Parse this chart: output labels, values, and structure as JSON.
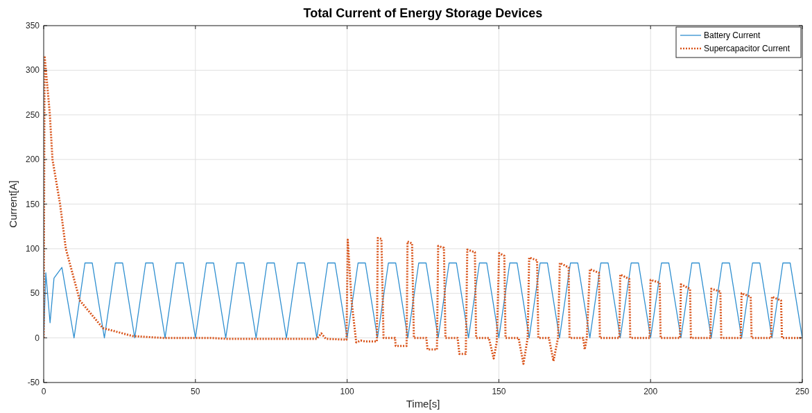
{
  "chart_data": {
    "type": "line",
    "title": "Total Current of Energy Storage Devices",
    "xlabel": "Time[s]",
    "ylabel": "Current[A]",
    "xlim": [
      0,
      250
    ],
    "ylim": [
      -50,
      350
    ],
    "xticks": [
      0,
      50,
      100,
      150,
      200,
      250
    ],
    "yticks": [
      -50,
      0,
      50,
      100,
      150,
      200,
      250,
      300,
      350
    ],
    "grid": true,
    "legend": "top right",
    "series": [
      {
        "name": "Battery Current",
        "color": "#2f8fd0",
        "line_style": "solid",
        "x": [
          0,
          0.7,
          2.1,
          3.4,
          6,
          10,
          13.6,
          16,
          20,
          23.6,
          26,
          30,
          33.6,
          36,
          40,
          43.6,
          46,
          50,
          53.6,
          56,
          60,
          63.6,
          66,
          70,
          73.6,
          76,
          80,
          83.6,
          86,
          90,
          93.6,
          96,
          100,
          103.6,
          106,
          110,
          113.6,
          116,
          120,
          123.6,
          126,
          130,
          133.6,
          136,
          140,
          143.6,
          146,
          150,
          153.6,
          156,
          160,
          163.6,
          166,
          170,
          173.6,
          176,
          180,
          183.6,
          186,
          190,
          193.6,
          196,
          200,
          203.6,
          206,
          210,
          213.6,
          216,
          220,
          223.6,
          226,
          230,
          233.6,
          236,
          240,
          243.6,
          246,
          250
        ],
        "values": [
          0,
          73,
          17,
          67,
          79,
          0,
          84,
          84,
          0,
          84,
          84,
          0,
          84,
          84,
          0,
          84,
          84,
          0,
          84,
          84,
          0,
          84,
          84,
          0,
          84,
          84,
          0,
          84,
          84,
          0,
          84,
          84,
          0,
          84,
          84,
          0,
          84,
          84,
          0,
          84,
          84,
          0,
          84,
          84,
          0,
          84,
          84,
          0,
          84,
          84,
          0,
          84,
          84,
          0,
          84,
          84,
          0,
          84,
          84,
          0,
          84,
          84,
          0,
          84,
          84,
          0,
          84,
          84,
          0,
          84,
          84,
          0,
          84,
          84,
          0,
          84,
          84,
          0
        ]
      },
      {
        "name": "Supercapacitor Current",
        "color": "#d95319",
        "line_style": "dotted",
        "x": [
          0,
          0.3,
          2,
          2.9,
          5.4,
          7.3,
          11.9,
          19.5,
          29.4,
          39.3,
          55,
          60,
          70,
          80,
          90,
          91.5,
          93,
          99.8,
          100.2,
          101.5,
          103,
          104.5,
          106,
          109.8,
          110.1,
          111.3,
          112,
          115.8,
          116,
          119.6,
          119.9,
          121.4,
          122,
          126.1,
          126.5,
          129.6,
          130,
          131.9,
          132.4,
          136.4,
          137,
          139.1,
          139.6,
          142.1,
          142.5,
          146.7,
          148.3,
          149.3,
          150.1,
          151.8,
          152.2,
          156.5,
          158.1,
          159.5,
          160,
          162.6,
          163,
          166.5,
          168,
          169.5,
          170.1,
          173,
          173.3,
          177.8,
          178.3,
          179,
          180,
          183,
          183.3,
          189.7,
          190,
          193,
          193.3,
          199.7,
          200,
          203,
          203.3,
          209.7,
          210,
          213,
          213.3,
          219.7,
          220,
          223,
          223.3,
          229.7,
          230,
          233,
          233.3,
          239.7,
          240,
          243,
          243.3,
          250
        ],
        "values": [
          0,
          316,
          252,
          200,
          150,
          100,
          42,
          11,
          2,
          0,
          0,
          -1,
          -1,
          -1,
          -1,
          5,
          -1,
          -2,
          110,
          40,
          -5,
          -3,
          -4,
          -4,
          112,
          111,
          0,
          0,
          -9,
          -9,
          108,
          106,
          0,
          0,
          -13,
          -13,
          103,
          101,
          0,
          0,
          -18,
          -18,
          99,
          96,
          0,
          0,
          -23,
          -5,
          95,
          92,
          0,
          0,
          -29,
          0,
          90,
          87,
          0,
          0,
          -26,
          0,
          84,
          79,
          0,
          0,
          -13,
          0,
          77,
          73,
          0,
          0,
          71,
          66,
          0,
          0,
          65,
          62,
          0,
          0,
          60,
          55,
          0,
          0,
          55,
          52,
          0,
          0,
          50,
          46,
          0,
          0,
          46,
          42,
          0,
          0
        ]
      }
    ]
  }
}
